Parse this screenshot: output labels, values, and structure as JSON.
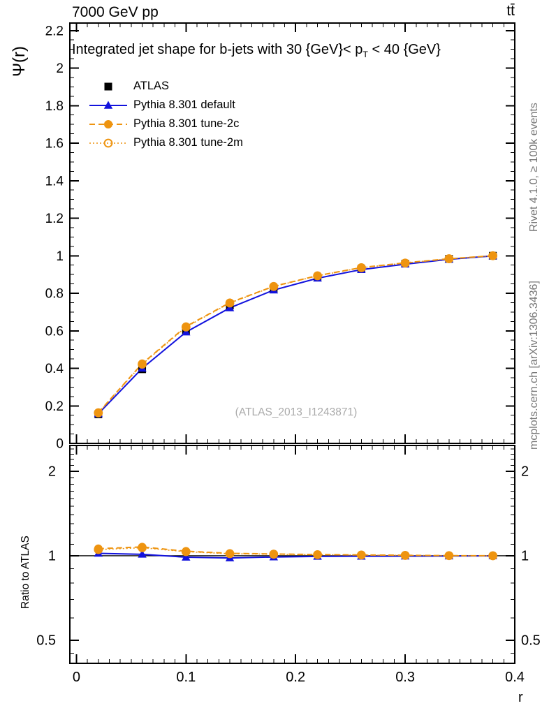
{
  "page": {
    "header_left": "7000 GeV pp",
    "header_right": "tt̄",
    "title_prefix": "Integrated jet shape for b-jets with 30 {GeV}< p",
    "title_sub": "T",
    "title_suffix": " < 40 {GeV}",
    "watermark": "(ATLAS_2013_I1243871)",
    "side_note_top": "Rivet 4.1.0, ≥ 100k events",
    "side_note_bottom": "mcplots.cern.ch [arXiv:1306.3436]",
    "ylabel_main": "Ψ(r)",
    "ylabel_ratio": "Ratio to ATLAS",
    "xlabel": "r"
  },
  "colors": {
    "blue": "#1212dd",
    "orange": "#ee9410",
    "black": "#000000",
    "note_gray": "#777777",
    "watermark_gray": "#aaaaaa"
  },
  "legend": [
    {
      "label": "ATLAS",
      "marker": "filled-square",
      "line": "none",
      "color": "#000000"
    },
    {
      "label": "Pythia 8.301 default",
      "marker": "filled-triangle",
      "line": "solid",
      "color": "#1212dd"
    },
    {
      "label": "Pythia 8.301 tune-2c",
      "marker": "filled-circle",
      "line": "dashed",
      "color": "#ee9410"
    },
    {
      "label": "Pythia 8.301 tune-2m",
      "marker": "open-circle",
      "line": "dotted",
      "color": "#ee9410"
    }
  ],
  "chart_data": [
    {
      "type": "line",
      "panel": "main",
      "title": "Integrated jet shape for b-jets with 30 {GeV}< p_T < 40 {GeV}",
      "xlabel": "r",
      "ylabel": "Ψ(r)",
      "xlim": [
        -0.006,
        0.4
      ],
      "ylim": [
        0,
        2.24
      ],
      "grid": false,
      "legend_position": "top-left",
      "xticks": {
        "values": [
          0,
          0.1,
          0.2,
          0.3,
          0.4
        ],
        "labels": null,
        "minor_step": 0.01
      },
      "yticks": {
        "values": [
          0,
          0.2,
          0.4,
          0.6,
          0.8,
          1.0,
          1.2,
          1.4,
          1.6,
          1.8,
          2.0,
          2.2
        ],
        "labels": [
          "0",
          "0.2",
          "0.4",
          "0.6",
          "0.8",
          "1",
          "1.2",
          "1.4",
          "1.6",
          "1.8",
          "2",
          "2.2"
        ],
        "labels_right": false,
        "minor_step": 0.05
      },
      "x": [
        0.02,
        0.06,
        0.1,
        0.14,
        0.18,
        0.22,
        0.26,
        0.3,
        0.34,
        0.38
      ],
      "series": [
        {
          "name": "ATLAS",
          "color": "#000000",
          "marker": "filled-square",
          "line": "none",
          "values": [
            0.155,
            0.395,
            0.6,
            0.735,
            0.825,
            0.885,
            0.93,
            0.958,
            0.983,
            1.0
          ]
        },
        {
          "name": "Pythia 8.301 default",
          "color": "#1212dd",
          "marker": "filled-triangle",
          "line": "solid",
          "values": [
            0.158,
            0.4,
            0.593,
            0.722,
            0.817,
            0.88,
            0.926,
            0.955,
            0.981,
            0.999
          ]
        },
        {
          "name": "Pythia 8.301 tune-2c",
          "color": "#ee9410",
          "marker": "filled-circle",
          "line": "dashed",
          "values": [
            0.164,
            0.425,
            0.623,
            0.75,
            0.837,
            0.894,
            0.937,
            0.962,
            0.984,
            1.0
          ]
        },
        {
          "name": "Pythia 8.301 tune-2m",
          "color": "#ee9410",
          "marker": "open-circle",
          "line": "dotted",
          "values": [
            0.163,
            0.422,
            0.62,
            0.748,
            0.836,
            0.893,
            0.936,
            0.961,
            0.984,
            1.0
          ]
        }
      ]
    },
    {
      "type": "line",
      "panel": "ratio",
      "title": "",
      "xlabel": "r",
      "ylabel": "Ratio to ATLAS",
      "xlim": [
        -0.006,
        0.4
      ],
      "ylim": [
        0.414,
        2.47
      ],
      "yscale": "log",
      "grid": false,
      "refline_y": 1,
      "xticks": {
        "values": [
          0,
          0.1,
          0.2,
          0.3,
          0.4
        ],
        "labels": [
          "0",
          "0.1",
          "0.2",
          "0.3",
          "0.4"
        ],
        "minor_step": 0.01
      },
      "yticks": {
        "values": [
          0.5,
          1,
          2
        ],
        "labels": [
          "0.5",
          "1",
          "2"
        ],
        "labels_right": true,
        "minors": [
          0.45,
          0.6,
          0.7,
          0.8,
          0.9,
          1.1,
          1.2,
          1.3,
          1.4,
          1.5,
          1.6,
          1.7,
          1.8,
          1.9,
          2.1,
          2.2,
          2.3,
          2.4
        ]
      },
      "x": [
        0.02,
        0.06,
        0.1,
        0.14,
        0.18,
        0.22,
        0.26,
        0.3,
        0.34,
        0.38
      ],
      "series": [
        {
          "name": "Pythia 8.301 default",
          "color": "#1212dd",
          "marker": "filled-triangle",
          "line": "solid",
          "values": [
            1.02,
            1.012,
            0.988,
            0.982,
            0.99,
            0.995,
            0.996,
            0.997,
            0.998,
            0.999
          ]
        },
        {
          "name": "Pythia 8.301 tune-2c",
          "color": "#ee9410",
          "marker": "filled-circle",
          "line": "dashed",
          "values": [
            1.06,
            1.075,
            1.038,
            1.02,
            1.015,
            1.01,
            1.007,
            1.004,
            1.001,
            1.0
          ]
        },
        {
          "name": "Pythia 8.301 tune-2m",
          "color": "#ee9410",
          "marker": "open-circle",
          "line": "dotted",
          "values": [
            1.052,
            1.068,
            1.034,
            1.017,
            1.013,
            1.009,
            1.006,
            1.003,
            1.001,
            1.0
          ]
        }
      ]
    }
  ]
}
